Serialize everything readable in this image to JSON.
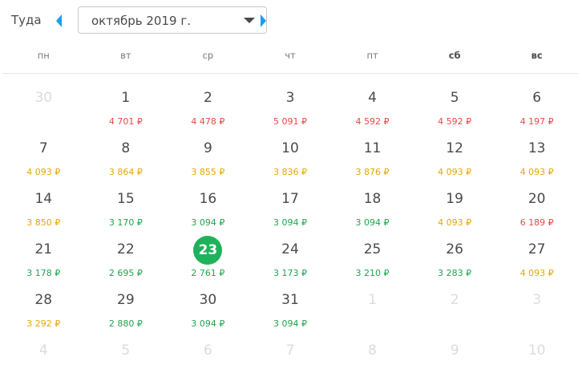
{
  "header": {
    "direction_label": "Туда",
    "month_value": "октябрь 2019 г."
  },
  "icons": {
    "prev": "arrow-left-icon",
    "next": "arrow-right-icon",
    "dropdown": "chevron-down-icon"
  },
  "colors": {
    "accent": "#1a9ee8",
    "selected": "#1eb35a",
    "price_high": "#ea4747",
    "price_mid": "#e5a700",
    "price_low": "#1fa54d"
  },
  "weekdays": [
    "пн",
    "вт",
    "ср",
    "чт",
    "пт",
    "сб",
    "вс"
  ],
  "days": [
    {
      "day": "30",
      "price": "",
      "level": "",
      "faded": true
    },
    {
      "day": "1",
      "price": "4 701 ₽",
      "level": "red"
    },
    {
      "day": "2",
      "price": "4 478 ₽",
      "level": "red"
    },
    {
      "day": "3",
      "price": "5 091 ₽",
      "level": "red"
    },
    {
      "day": "4",
      "price": "4 592 ₽",
      "level": "red"
    },
    {
      "day": "5",
      "price": "4 592 ₽",
      "level": "red"
    },
    {
      "day": "6",
      "price": "4 197 ₽",
      "level": "red"
    },
    {
      "day": "7",
      "price": "4 093 ₽",
      "level": "yellow"
    },
    {
      "day": "8",
      "price": "3 864 ₽",
      "level": "yellow"
    },
    {
      "day": "9",
      "price": "3 855 ₽",
      "level": "yellow"
    },
    {
      "day": "10",
      "price": "3 836 ₽",
      "level": "yellow"
    },
    {
      "day": "11",
      "price": "3 876 ₽",
      "level": "yellow"
    },
    {
      "day": "12",
      "price": "4 093 ₽",
      "level": "yellow"
    },
    {
      "day": "13",
      "price": "4 093 ₽",
      "level": "yellow"
    },
    {
      "day": "14",
      "price": "3 850 ₽",
      "level": "yellow"
    },
    {
      "day": "15",
      "price": "3 170 ₽",
      "level": "green"
    },
    {
      "day": "16",
      "price": "3 094 ₽",
      "level": "green"
    },
    {
      "day": "17",
      "price": "3 094 ₽",
      "level": "green"
    },
    {
      "day": "18",
      "price": "3 094 ₽",
      "level": "green"
    },
    {
      "day": "19",
      "price": "4 093 ₽",
      "level": "yellow"
    },
    {
      "day": "20",
      "price": "6 189 ₽",
      "level": "red"
    },
    {
      "day": "21",
      "price": "3 178 ₽",
      "level": "green"
    },
    {
      "day": "22",
      "price": "2 695 ₽",
      "level": "green"
    },
    {
      "day": "23",
      "price": "2 761 ₽",
      "level": "green",
      "selected": true
    },
    {
      "day": "24",
      "price": "3 173 ₽",
      "level": "green"
    },
    {
      "day": "25",
      "price": "3 210 ₽",
      "level": "green"
    },
    {
      "day": "26",
      "price": "3 283 ₽",
      "level": "green"
    },
    {
      "day": "27",
      "price": "4 093 ₽",
      "level": "yellow"
    },
    {
      "day": "28",
      "price": "3 292 ₽",
      "level": "yellow"
    },
    {
      "day": "29",
      "price": "2 880 ₽",
      "level": "green"
    },
    {
      "day": "30",
      "price": "3 094 ₽",
      "level": "green"
    },
    {
      "day": "31",
      "price": "3 094 ₽",
      "level": "green"
    },
    {
      "day": "1",
      "price": "",
      "level": "",
      "faded": true
    },
    {
      "day": "2",
      "price": "",
      "level": "",
      "faded": true
    },
    {
      "day": "3",
      "price": "",
      "level": "",
      "faded": true
    },
    {
      "day": "4",
      "price": "",
      "level": "",
      "faded": true
    },
    {
      "day": "5",
      "price": "",
      "level": "",
      "faded": true
    },
    {
      "day": "6",
      "price": "",
      "level": "",
      "faded": true
    },
    {
      "day": "7",
      "price": "",
      "level": "",
      "faded": true
    },
    {
      "day": "8",
      "price": "",
      "level": "",
      "faded": true
    },
    {
      "day": "9",
      "price": "",
      "level": "",
      "faded": true
    },
    {
      "day": "10",
      "price": "",
      "level": "",
      "faded": true
    }
  ]
}
